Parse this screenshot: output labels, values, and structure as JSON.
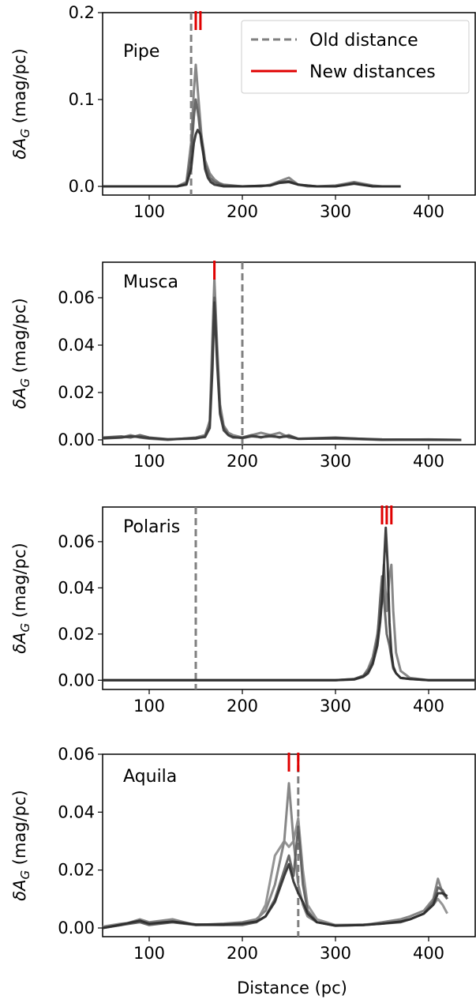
{
  "colors": {
    "old_distance": "#808080",
    "new_distance": "#e00000",
    "frame": "#000000"
  },
  "shared": {
    "x_label": "Distance (pc)",
    "y_label_main": "δA",
    "y_label_sub": "G",
    "y_label_tail": " (mag/pc)",
    "legend": {
      "placement": "top-right of first panel",
      "old_label": "Old distance",
      "new_label": "New distances"
    }
  },
  "chart_data": [
    {
      "type": "line",
      "name": "Pipe",
      "xlim": [
        50,
        450
      ],
      "ylim": [
        -0.01,
        0.2
      ],
      "xticks": [
        100,
        200,
        300,
        400
      ],
      "xtick_labels": [
        "100",
        "200",
        "300",
        "400"
      ],
      "yticks": [
        0.0,
        0.1,
        0.2
      ],
      "ytick_labels": [
        "0.0",
        "0.1",
        "0.2"
      ],
      "old_distance": [
        145
      ],
      "new_distances": [
        150,
        155
      ],
      "series": [
        {
          "shade": "#7a7a7a",
          "x": [
            50,
            130,
            140,
            145,
            148,
            150,
            153,
            156,
            160,
            165,
            170,
            175,
            180,
            200,
            220,
            230,
            240,
            245,
            250,
            255,
            260,
            270,
            280,
            300,
            310,
            320,
            330,
            340,
            350,
            370
          ],
          "y": [
            0,
            0,
            0.005,
            0.05,
            0.11,
            0.14,
            0.1,
            0.06,
            0.03,
            0.015,
            0.008,
            0.004,
            0.002,
            0,
            0,
            0.002,
            0.006,
            0.008,
            0.01,
            0.006,
            0.002,
            0,
            0,
            0.001,
            0.003,
            0.005,
            0.003,
            0.001,
            0,
            0
          ]
        },
        {
          "shade": "#5a5a5a",
          "x": [
            50,
            130,
            140,
            145,
            148,
            150,
            153,
            156,
            160,
            165,
            170,
            180,
            200,
            230,
            240,
            250,
            260,
            280,
            300,
            320,
            340,
            370
          ],
          "y": [
            0,
            0,
            0.003,
            0.035,
            0.08,
            0.1,
            0.08,
            0.05,
            0.025,
            0.01,
            0.005,
            0.001,
            0,
            0.001,
            0.005,
            0.006,
            0.002,
            0,
            0,
            0.004,
            0,
            0
          ]
        },
        {
          "shade": "#2a2a2a",
          "x": [
            50,
            130,
            140,
            145,
            148,
            150,
            152,
            155,
            158,
            160,
            163,
            166,
            170,
            175,
            180,
            200,
            230,
            240,
            250,
            260,
            280,
            300,
            320,
            340,
            370
          ],
          "y": [
            0,
            0,
            0.002,
            0.02,
            0.05,
            0.06,
            0.065,
            0.06,
            0.04,
            0.02,
            0.01,
            0.005,
            0.002,
            0.001,
            0,
            0,
            0.001,
            0.004,
            0.005,
            0.002,
            0,
            0,
            0.003,
            0,
            0
          ]
        }
      ],
      "label_text": "Pipe",
      "show_legend": true
    },
    {
      "type": "line",
      "name": "Musca",
      "xlim": [
        50,
        450
      ],
      "ylim": [
        -0.002,
        0.075
      ],
      "xticks": [
        100,
        200,
        300,
        400
      ],
      "xtick_labels": [
        "100",
        "200",
        "300",
        "400"
      ],
      "yticks": [
        0.0,
        0.02,
        0.04,
        0.06
      ],
      "ytick_labels": [
        "0.00",
        "0.02",
        "0.04",
        "0.06"
      ],
      "old_distance": [
        200
      ],
      "new_distances": [
        170
      ],
      "series": [
        {
          "shade": "#7a7a7a",
          "x": [
            50,
            70,
            80,
            90,
            100,
            120,
            150,
            160,
            165,
            168,
            170,
            173,
            176,
            180,
            185,
            190,
            200,
            210,
            220,
            230,
            240,
            250,
            260,
            300,
            350,
            400,
            435
          ],
          "y": [
            0.0005,
            0.001,
            0.002,
            0.001,
            0.0005,
            0,
            0.001,
            0.002,
            0.008,
            0.045,
            0.068,
            0.04,
            0.015,
            0.006,
            0.003,
            0.002,
            0.001,
            0.002,
            0.003,
            0.002,
            0.003,
            0.001,
            0.0005,
            0.0005,
            0,
            0,
            0
          ]
        },
        {
          "shade": "#5a5a5a",
          "x": [
            50,
            70,
            80,
            90,
            100,
            120,
            150,
            160,
            165,
            168,
            170,
            173,
            176,
            180,
            185,
            190,
            200,
            210,
            220,
            230,
            240,
            250,
            260,
            300,
            350,
            400,
            435
          ],
          "y": [
            0.001,
            0.0015,
            0.001,
            0.002,
            0.001,
            0.0003,
            0.0005,
            0.0015,
            0.006,
            0.035,
            0.06,
            0.035,
            0.012,
            0.005,
            0.002,
            0.001,
            0.001,
            0.002,
            0.001,
            0.002,
            0.001,
            0.002,
            0.0005,
            0.001,
            0,
            0.0002,
            0
          ]
        },
        {
          "shade": "#3a3a3a",
          "x": [
            50,
            70,
            80,
            90,
            100,
            120,
            150,
            160,
            165,
            168,
            170,
            173,
            176,
            180,
            185,
            190,
            200,
            210,
            220,
            230,
            240,
            250,
            260,
            300,
            350,
            400,
            435
          ],
          "y": [
            0.0008,
            0.001,
            0.0015,
            0.0012,
            0.0008,
            0.0002,
            0.0008,
            0.0012,
            0.005,
            0.03,
            0.058,
            0.032,
            0.011,
            0.004,
            0.002,
            0.0012,
            0.0008,
            0.0015,
            0.0012,
            0.0015,
            0.0012,
            0.0015,
            0.0004,
            0.0008,
            0.0002,
            0.0001,
            0
          ]
        }
      ],
      "label_text": "Musca",
      "show_legend": false
    },
    {
      "type": "line",
      "name": "Polaris",
      "xlim": [
        50,
        450
      ],
      "ylim": [
        -0.004,
        0.075
      ],
      "xticks": [
        100,
        200,
        300,
        400
      ],
      "xtick_labels": [
        "100",
        "200",
        "300",
        "400"
      ],
      "yticks": [
        0.0,
        0.02,
        0.04,
        0.06
      ],
      "ytick_labels": [
        "0.00",
        "0.02",
        "0.04",
        "0.06"
      ],
      "old_distance": [
        150
      ],
      "new_distances": [
        350,
        355,
        360
      ],
      "series": [
        {
          "shade": "#7a7a7a",
          "x": [
            50,
            300,
            320,
            330,
            335,
            340,
            345,
            348,
            350,
            352,
            355,
            358,
            360,
            362,
            365,
            370,
            380,
            400,
            450
          ],
          "y": [
            0,
            0,
            0.0005,
            0.002,
            0.005,
            0.01,
            0.02,
            0.03,
            0.035,
            0.05,
            0.03,
            0.045,
            0.05,
            0.03,
            0.012,
            0.004,
            0.001,
            0,
            0
          ]
        },
        {
          "shade": "#5a5a5a",
          "x": [
            50,
            300,
            320,
            330,
            335,
            340,
            345,
            348,
            350,
            352,
            355,
            358,
            360,
            362,
            365,
            370,
            380,
            400,
            450
          ],
          "y": [
            0,
            0,
            0.0005,
            0.002,
            0.004,
            0.008,
            0.018,
            0.035,
            0.045,
            0.035,
            0.02,
            0.015,
            0.01,
            0.005,
            0.003,
            0.001,
            0.0005,
            0,
            0
          ]
        },
        {
          "shade": "#2a2a2a",
          "x": [
            50,
            300,
            320,
            330,
            335,
            340,
            345,
            348,
            350,
            352,
            354,
            356,
            358,
            360,
            362,
            365,
            370,
            380,
            400,
            450
          ],
          "y": [
            0,
            0,
            0.0003,
            0.0015,
            0.003,
            0.007,
            0.015,
            0.025,
            0.035,
            0.05,
            0.066,
            0.05,
            0.025,
            0.012,
            0.006,
            0.003,
            0.001,
            0.0005,
            0,
            0
          ]
        }
      ],
      "label_text": "Polaris",
      "show_legend": false
    },
    {
      "type": "line",
      "name": "Aquila",
      "xlim": [
        50,
        450
      ],
      "ylim": [
        -0.003,
        0.06
      ],
      "xticks": [
        100,
        200,
        300,
        400
      ],
      "xtick_labels": [
        "100",
        "200",
        "300",
        "400"
      ],
      "yticks": [
        0.0,
        0.02,
        0.04,
        0.06
      ],
      "ytick_labels": [
        "0.00",
        "0.02",
        "0.04",
        "0.06"
      ],
      "old_distance": [
        260
      ],
      "new_distances": [
        250,
        260
      ],
      "series": [
        {
          "shade": "#7a7a7a",
          "x": [
            50,
            70,
            90,
            100,
            125,
            150,
            180,
            200,
            215,
            225,
            235,
            245,
            250,
            255,
            260,
            265,
            270,
            280,
            300,
            330,
            350,
            370,
            380,
            395,
            405,
            410,
            415,
            420
          ],
          "y": [
            0,
            0.001,
            0.003,
            0.002,
            0.003,
            0.001,
            0.0015,
            0.002,
            0.003,
            0.006,
            0.015,
            0.03,
            0.05,
            0.03,
            0.015,
            0.008,
            0.004,
            0.002,
            0.001,
            0.001,
            0.002,
            0.003,
            0.004,
            0.006,
            0.01,
            0.017,
            0.012,
            0.01
          ]
        },
        {
          "shade": "#8a8a8a",
          "x": [
            50,
            70,
            90,
            100,
            125,
            150,
            180,
            200,
            215,
            225,
            235,
            245,
            250,
            255,
            260,
            265,
            270,
            280,
            300,
            330,
            350,
            370,
            380,
            395,
            405,
            410,
            415,
            420
          ],
          "y": [
            0.0005,
            0.0015,
            0.002,
            0.0015,
            0.002,
            0.0012,
            0.001,
            0.0018,
            0.002,
            0.008,
            0.025,
            0.03,
            0.028,
            0.03,
            0.038,
            0.02,
            0.008,
            0.003,
            0.001,
            0.0012,
            0.0015,
            0.0025,
            0.003,
            0.005,
            0.008,
            0.01,
            0.008,
            0.005
          ]
        },
        {
          "shade": "#5a5a5a",
          "x": [
            50,
            70,
            90,
            100,
            125,
            150,
            180,
            200,
            215,
            225,
            235,
            245,
            250,
            255,
            260,
            265,
            270,
            280,
            300,
            330,
            350,
            370,
            380,
            395,
            405,
            410,
            415,
            420
          ],
          "y": [
            0,
            0.001,
            0.002,
            0.001,
            0.002,
            0.001,
            0.001,
            0.001,
            0.002,
            0.004,
            0.01,
            0.02,
            0.025,
            0.018,
            0.035,
            0.015,
            0.006,
            0.002,
            0.0008,
            0.001,
            0.0015,
            0.002,
            0.003,
            0.005,
            0.009,
            0.014,
            0.013,
            0.01
          ]
        },
        {
          "shade": "#2a2a2a",
          "x": [
            50,
            70,
            90,
            100,
            125,
            150,
            180,
            200,
            215,
            225,
            235,
            245,
            250,
            255,
            260,
            265,
            270,
            280,
            300,
            330,
            350,
            370,
            380,
            395,
            405,
            410,
            415,
            420
          ],
          "y": [
            0,
            0.0012,
            0.0025,
            0.0015,
            0.0022,
            0.0012,
            0.0012,
            0.0015,
            0.0022,
            0.004,
            0.009,
            0.018,
            0.022,
            0.016,
            0.012,
            0.009,
            0.005,
            0.002,
            0.0008,
            0.001,
            0.0015,
            0.0022,
            0.003,
            0.005,
            0.008,
            0.012,
            0.012,
            0.011
          ]
        }
      ],
      "label_text": "Aquila",
      "show_legend": false
    }
  ]
}
